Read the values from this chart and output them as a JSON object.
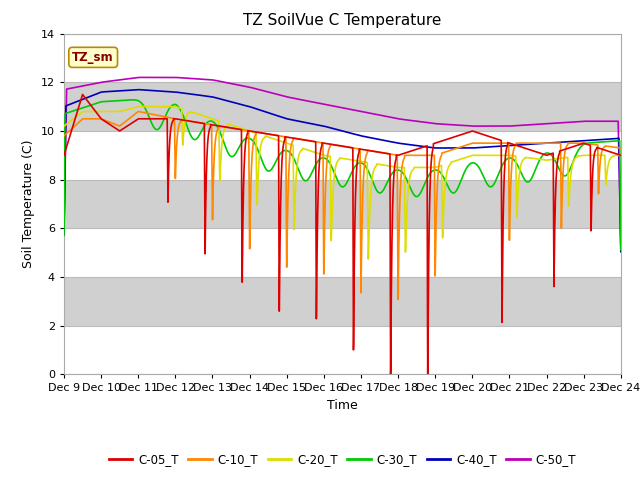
{
  "title": "TZ SoilVue C Temperature",
  "xlabel": "Time",
  "ylabel": "Soil Temperature (C)",
  "ylim": [
    0,
    14
  ],
  "xlim": [
    0,
    15
  ],
  "x_tick_labels": [
    "Dec 9",
    "Dec 10",
    "Dec 11",
    "Dec 12",
    "Dec 13",
    "Dec 14",
    "Dec 15",
    "Dec 16",
    "Dec 17",
    "Dec 18",
    "Dec 19",
    "Dec 20",
    "Dec 21",
    "Dec 22",
    "Dec 23",
    "Dec 24"
  ],
  "series_colors": {
    "C-05_T": "#dd0000",
    "C-10_T": "#ff8800",
    "C-20_T": "#dddd00",
    "C-30_T": "#00cc00",
    "C-40_T": "#0000bb",
    "C-50_T": "#bb00bb"
  },
  "legend_label": "TZ_sm",
  "fig_bg": "#ffffff",
  "plot_bg": "#e8e8e8",
  "band_color": "#d0d0d0",
  "title_fontsize": 11,
  "axis_fontsize": 9,
  "tick_fontsize": 8
}
